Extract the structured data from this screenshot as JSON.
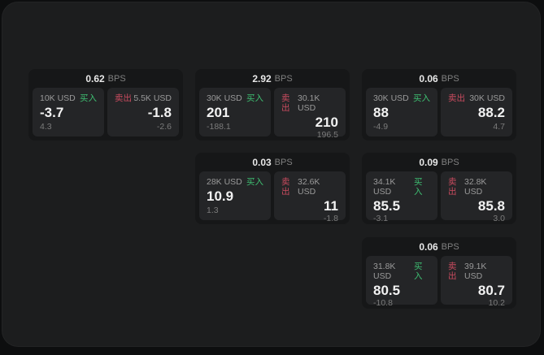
{
  "labels": {
    "buy": "买入",
    "sell": "卖出",
    "bps_unit": "BPS"
  },
  "colors": {
    "buy_green": "#3ebf72",
    "sell_red": "#c94b5f",
    "window_bg": "#1c1d1e",
    "card_bg": "#161718",
    "panel_bg": "#242527"
  },
  "cards": [
    {
      "row": 1,
      "col": 1,
      "bps": "0.62",
      "buy": {
        "amount": "10K USD",
        "price": "-3.7",
        "delta": "4.3"
      },
      "sell": {
        "amount": "5.5K USD",
        "price": "-1.8",
        "delta": "-2.6"
      }
    },
    {
      "row": 1,
      "col": 2,
      "bps": "2.92",
      "buy": {
        "amount": "30K USD",
        "price": "201",
        "delta": "-188.1"
      },
      "sell": {
        "amount": "30.1K USD",
        "price": "210",
        "delta": "196.5"
      }
    },
    {
      "row": 1,
      "col": 3,
      "bps": "0.06",
      "buy": {
        "amount": "30K USD",
        "price": "88",
        "delta": "-4.9"
      },
      "sell": {
        "amount": "30K USD",
        "price": "88.2",
        "delta": "4.7"
      }
    },
    {
      "row": 2,
      "col": 2,
      "bps": "0.03",
      "buy": {
        "amount": "28K USD",
        "price": "10.9",
        "delta": "1.3"
      },
      "sell": {
        "amount": "32.6K USD",
        "price": "11",
        "delta": "-1.8"
      }
    },
    {
      "row": 2,
      "col": 3,
      "bps": "0.09",
      "buy": {
        "amount": "34.1K USD",
        "price": "85.5",
        "delta": "-3.1"
      },
      "sell": {
        "amount": "32.8K USD",
        "price": "85.8",
        "delta": "3.0"
      }
    },
    {
      "row": 3,
      "col": 3,
      "bps": "0.06",
      "buy": {
        "amount": "31.8K USD",
        "price": "80.5",
        "delta": "-10.8"
      },
      "sell": {
        "amount": "39.1K USD",
        "price": "80.7",
        "delta": "10.2"
      }
    }
  ]
}
